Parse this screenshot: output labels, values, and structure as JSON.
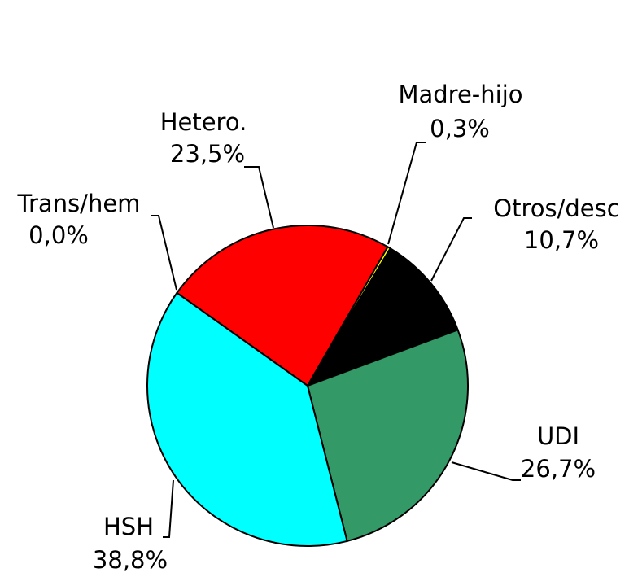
{
  "chart_data": {
    "type": "pie",
    "categories": [
      "Trans/hem",
      "Hetero.",
      "Madre-hijo",
      "Otros/desc",
      "UDI",
      "HSH"
    ],
    "values": [
      0.0,
      23.5,
      0.3,
      10.7,
      26.7,
      38.8
    ],
    "value_labels": [
      "0,0%",
      "23,5%",
      "0,3%",
      "10,7%",
      "26,7%",
      "38,8%"
    ],
    "colors": [
      "#808080",
      "#ff0000",
      "#ffff00",
      "#000000",
      "#339966",
      "#00ffff"
    ]
  }
}
